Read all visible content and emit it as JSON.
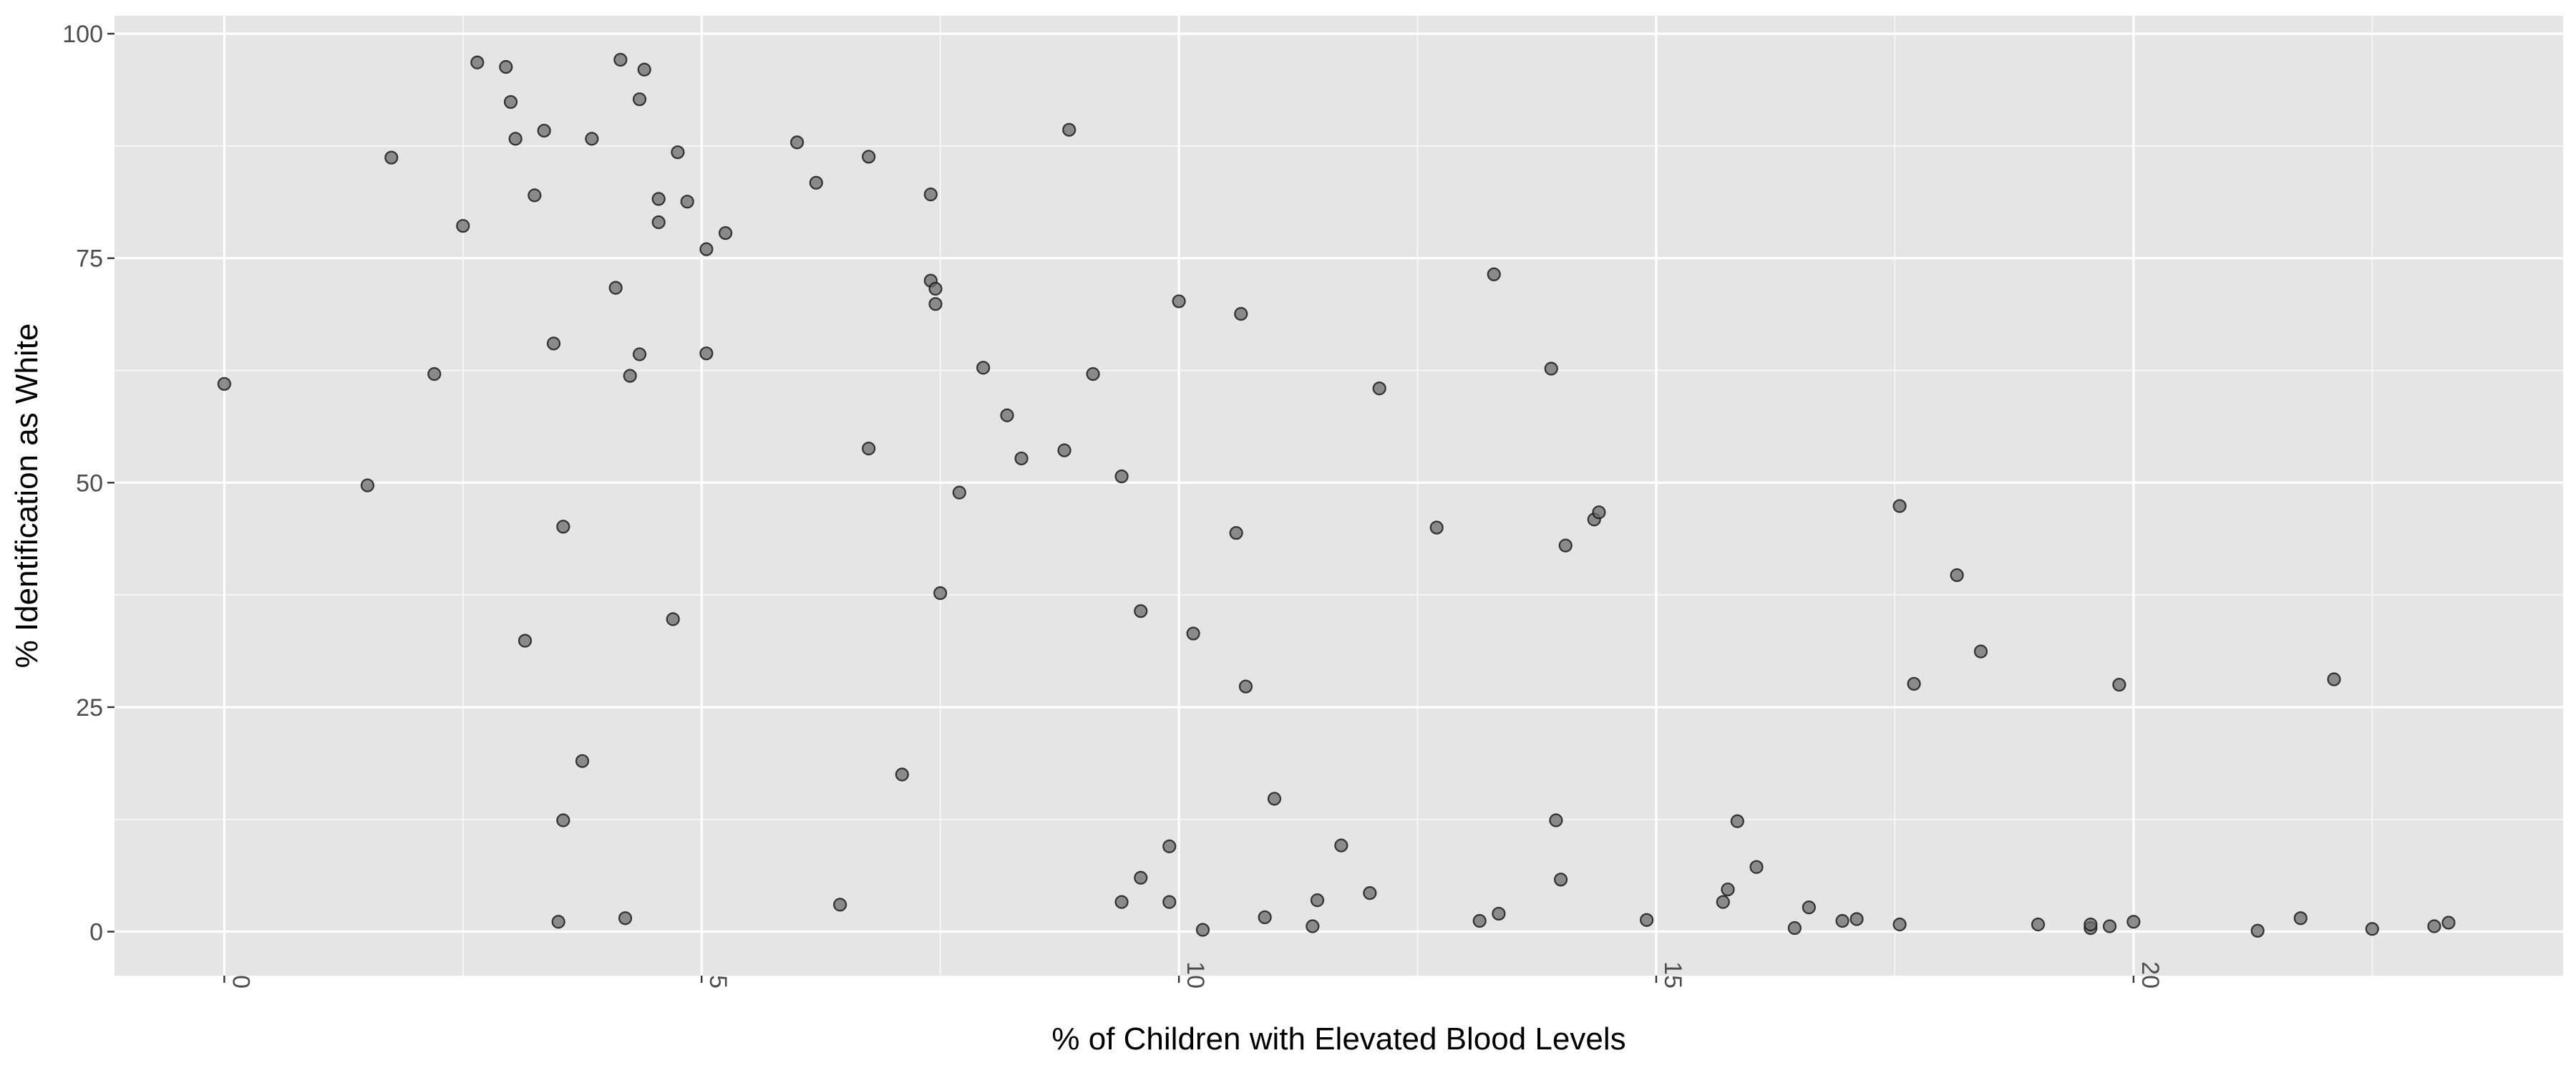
{
  "chart_data": {
    "type": "scatter",
    "title": "",
    "xlabel": "% of Children with Elevated Blood Levels",
    "ylabel": "% Identification as White",
    "xlim": [
      -1.15,
      24.5
    ],
    "ylim": [
      -4.9,
      102
    ],
    "x_ticks": [
      0,
      5,
      10,
      15,
      20
    ],
    "x_tick_labels": [
      "0",
      "5",
      "10",
      "15",
      "20"
    ],
    "y_ticks": [
      0,
      25,
      50,
      75,
      100
    ],
    "y_tick_labels": [
      "0",
      "25",
      "50",
      "75",
      "100"
    ],
    "x_tick_label_rotation": 90,
    "grid": true,
    "legend": "none",
    "colors": {
      "panel_background": "#e5e5e5",
      "grid_major": "#ffffff",
      "point_fill": "#6b6b6b",
      "point_stroke": "#1a1a1a",
      "tick_label": "#4d4d4d",
      "axis_title": "#000000"
    },
    "points": [
      [
        0.0,
        61.0
      ],
      [
        1.5,
        49.7
      ],
      [
        1.75,
        86.2
      ],
      [
        2.2,
        62.1
      ],
      [
        2.5,
        78.6
      ],
      [
        2.65,
        96.8
      ],
      [
        2.95,
        96.3
      ],
      [
        3.0,
        92.4
      ],
      [
        3.05,
        88.3
      ],
      [
        3.15,
        32.4
      ],
      [
        3.25,
        82.0
      ],
      [
        3.35,
        89.2
      ],
      [
        3.45,
        65.5
      ],
      [
        3.5,
        1.1
      ],
      [
        3.55,
        12.4
      ],
      [
        3.55,
        45.1
      ],
      [
        3.75,
        19.0
      ],
      [
        3.85,
        88.3
      ],
      [
        4.1,
        71.7
      ],
      [
        4.15,
        97.1
      ],
      [
        4.2,
        1.5
      ],
      [
        4.25,
        61.9
      ],
      [
        4.35,
        92.7
      ],
      [
        4.35,
        64.3
      ],
      [
        4.4,
        96.0
      ],
      [
        4.55,
        81.6
      ],
      [
        4.55,
        79.0
      ],
      [
        4.7,
        34.8
      ],
      [
        4.75,
        86.8
      ],
      [
        4.85,
        81.3
      ],
      [
        5.05,
        76.0
      ],
      [
        5.05,
        64.4
      ],
      [
        5.25,
        77.8
      ],
      [
        6.0,
        87.9
      ],
      [
        6.2,
        83.4
      ],
      [
        6.45,
        3.0
      ],
      [
        6.75,
        86.3
      ],
      [
        6.75,
        53.8
      ],
      [
        7.1,
        17.5
      ],
      [
        7.4,
        82.1
      ],
      [
        7.4,
        72.5
      ],
      [
        7.45,
        71.6
      ],
      [
        7.45,
        69.9
      ],
      [
        7.5,
        37.7
      ],
      [
        7.7,
        48.9
      ],
      [
        7.95,
        62.8
      ],
      [
        8.2,
        57.5
      ],
      [
        8.35,
        52.7
      ],
      [
        8.8,
        53.6
      ],
      [
        8.85,
        89.3
      ],
      [
        9.1,
        62.1
      ],
      [
        9.4,
        50.7
      ],
      [
        9.4,
        3.3
      ],
      [
        9.6,
        35.7
      ],
      [
        9.6,
        6.0
      ],
      [
        9.9,
        3.3
      ],
      [
        9.9,
        9.5
      ],
      [
        10.0,
        70.2
      ],
      [
        10.15,
        33.2
      ],
      [
        10.25,
        0.2
      ],
      [
        10.6,
        44.4
      ],
      [
        10.65,
        68.8
      ],
      [
        10.7,
        27.3
      ],
      [
        10.9,
        1.6
      ],
      [
        11.0,
        14.8
      ],
      [
        11.4,
        0.6
      ],
      [
        11.45,
        3.5
      ],
      [
        11.7,
        9.6
      ],
      [
        12.0,
        4.3
      ],
      [
        12.1,
        60.5
      ],
      [
        12.7,
        45.0
      ],
      [
        13.15,
        1.2
      ],
      [
        13.3,
        73.2
      ],
      [
        13.35,
        2.0
      ],
      [
        13.9,
        62.7
      ],
      [
        13.95,
        12.4
      ],
      [
        14.0,
        5.8
      ],
      [
        14.05,
        43.0
      ],
      [
        14.35,
        45.9
      ],
      [
        14.4,
        46.7
      ],
      [
        14.9,
        1.3
      ],
      [
        15.7,
        3.3
      ],
      [
        15.75,
        4.7
      ],
      [
        15.85,
        12.3
      ],
      [
        16.05,
        7.2
      ],
      [
        16.45,
        0.4
      ],
      [
        16.6,
        2.7
      ],
      [
        16.95,
        1.2
      ],
      [
        17.1,
        1.4
      ],
      [
        17.55,
        0.8
      ],
      [
        17.55,
        47.4
      ],
      [
        17.7,
        27.6
      ],
      [
        18.15,
        39.7
      ],
      [
        18.4,
        31.2
      ],
      [
        19.0,
        0.8
      ],
      [
        19.55,
        0.4
      ],
      [
        19.55,
        0.8
      ],
      [
        19.75,
        0.6
      ],
      [
        19.85,
        27.5
      ],
      [
        20.0,
        1.1
      ],
      [
        21.3,
        0.1
      ],
      [
        21.75,
        1.5
      ],
      [
        22.1,
        28.1
      ],
      [
        22.5,
        0.3
      ],
      [
        23.15,
        0.6
      ],
      [
        23.3,
        1.0
      ]
    ]
  }
}
